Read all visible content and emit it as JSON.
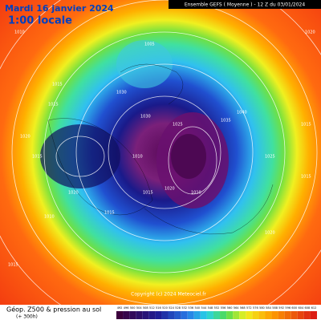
{
  "header": {
    "date": "Mardi 16 janvier 2024",
    "time": "1:00 locale",
    "model": "Ensemble GEFS  ( Moyenne )  - 12 Z du 03/01/2024"
  },
  "footer": {
    "title": "Géop. Z500 & pression au sol",
    "lead": "(+ 300h)"
  },
  "copyright": "Copyright (c) 2024 Meteociel.fr",
  "isobars": [
    "1010",
    "1015",
    "1015",
    "1005",
    "1020",
    "1030",
    "1025",
    "1030",
    "1035",
    "1040",
    "1015",
    "1020",
    "1010",
    "1020",
    "1015",
    "1015",
    "1010",
    "1025",
    "1010",
    "1015",
    "1020",
    "1015",
    "1020",
    "1015"
  ],
  "scale": [
    "492",
    "496",
    "500",
    "504",
    "508",
    "512",
    "516",
    "520",
    "524",
    "528",
    "532",
    "536",
    "540",
    "544",
    "548",
    "552",
    "556",
    "560",
    "564",
    "568",
    "572",
    "576",
    "580",
    "584",
    "588",
    "592",
    "596",
    "600",
    "604",
    "608",
    "612"
  ]
}
